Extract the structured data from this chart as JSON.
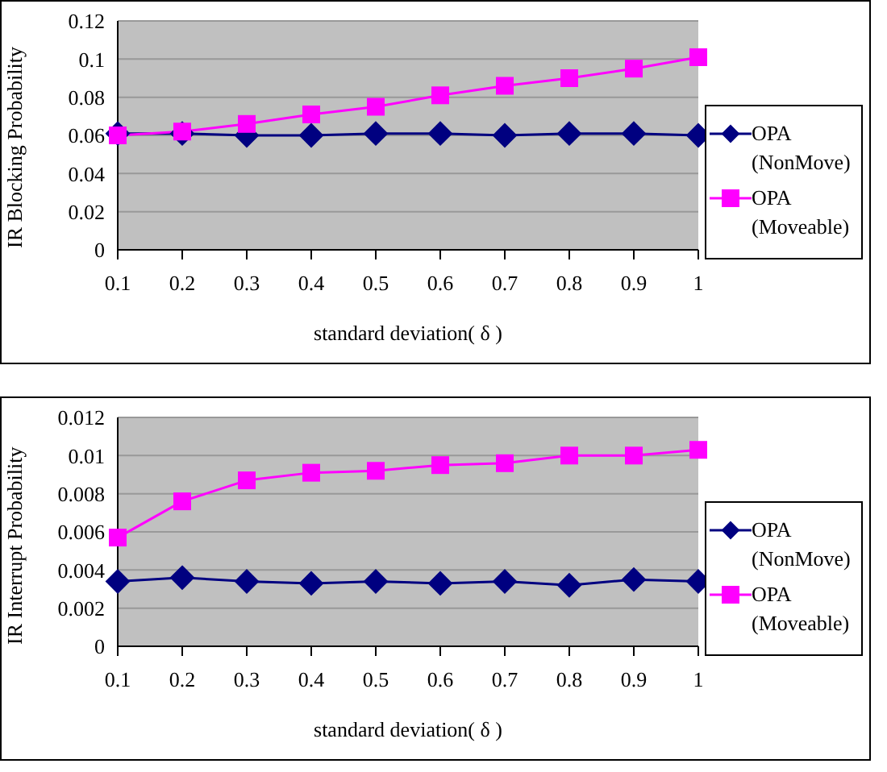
{
  "chart_data": [
    {
      "type": "line",
      "categories": [
        "0.1",
        "0.2",
        "0.3",
        "0.4",
        "0.5",
        "0.6",
        "0.7",
        "0.8",
        "0.9",
        "1"
      ],
      "xlabel": "standard deviation( δ )",
      "ylabel": "IR Blocking Probability",
      "ylim": [
        0,
        0.12
      ],
      "yticks": [
        0,
        0.02,
        0.04,
        0.06,
        0.08,
        0.1,
        0.12
      ],
      "grid": "y",
      "legend": "right",
      "line_style": "solid",
      "series": [
        {
          "name": "OPA (NonMove)",
          "color": "#000080",
          "marker": "diamond",
          "values": [
            0.061,
            0.061,
            0.06,
            0.06,
            0.061,
            0.061,
            0.06,
            0.061,
            0.061,
            0.06
          ]
        },
        {
          "name": "OPA (Moveable)",
          "color": "#ff00ff",
          "marker": "square",
          "values": [
            0.06,
            0.062,
            0.066,
            0.071,
            0.075,
            0.081,
            0.086,
            0.09,
            0.095,
            0.101
          ]
        }
      ]
    },
    {
      "type": "line",
      "categories": [
        "0.1",
        "0.2",
        "0.3",
        "0.4",
        "0.5",
        "0.6",
        "0.7",
        "0.8",
        "0.9",
        "1"
      ],
      "xlabel": "standard deviation( δ )",
      "ylabel": "IR Interrupt Probability",
      "ylim": [
        0,
        0.012
      ],
      "yticks": [
        0,
        0.002,
        0.004,
        0.006,
        0.008,
        0.01,
        0.012
      ],
      "grid": "y",
      "legend": "right",
      "line_style": "solid",
      "series": [
        {
          "name": "OPA (NonMove)",
          "color": "#000080",
          "marker": "diamond",
          "values": [
            0.0034,
            0.0036,
            0.0034,
            0.0033,
            0.0034,
            0.0033,
            0.0034,
            0.0032,
            0.0035,
            0.0034
          ]
        },
        {
          "name": "OPA (Moveable)",
          "color": "#ff00ff",
          "marker": "square",
          "values": [
            0.0057,
            0.0076,
            0.0087,
            0.0091,
            0.0092,
            0.0095,
            0.0096,
            0.01,
            0.01,
            0.0103
          ]
        }
      ]
    }
  ]
}
